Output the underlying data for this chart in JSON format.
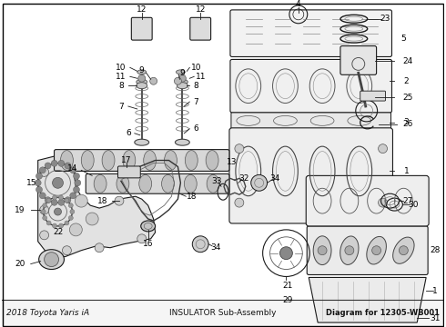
{
  "background_color": "#ffffff",
  "line_color": "#1a1a1a",
  "label_color": "#000000",
  "fig_width": 4.9,
  "fig_height": 3.6,
  "dpi": 100,
  "footer": "Diagram for 12305-WB001",
  "title1": "2018 Toyota Yaris iA",
  "title2": "INSULATOR Sub-Assembly"
}
